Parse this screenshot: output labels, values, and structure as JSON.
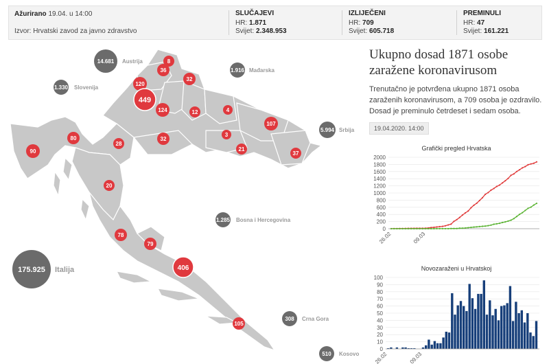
{
  "header": {
    "updated_label": "Ažurirano",
    "updated_value": "19.04. u 14:00",
    "source": "Izvor: Hrvatski zavod za javno zdravstvo",
    "stats": [
      {
        "title": "SLUČAJEVI",
        "hr_label": "HR:",
        "hr_value": "1.871",
        "world_label": "Svijet:",
        "world_value": "2.348.953"
      },
      {
        "title": "IZLIJEČENI",
        "hr_label": "HR:",
        "hr_value": "709",
        "world_label": "Svijet:",
        "world_value": "605.718"
      },
      {
        "title": "PREMINULI",
        "hr_label": "HR:",
        "hr_value": "47",
        "world_label": "Svijet:",
        "world_value": "161.221"
      }
    ]
  },
  "map": {
    "county_bubbles": [
      "8",
      "36",
      "32",
      "120",
      "449",
      "124",
      "12",
      "4",
      "107",
      "32",
      "3",
      "21",
      "37",
      "80",
      "90",
      "28",
      "20",
      "78",
      "79",
      "406",
      "105"
    ],
    "countries": [
      {
        "value": "14.681",
        "name": "Austrija"
      },
      {
        "value": "1.916",
        "name": "Mađarska"
      },
      {
        "value": "1.330",
        "name": "Slovenija"
      },
      {
        "value": "5.994",
        "name": "Srbija"
      },
      {
        "value": "1.285",
        "name": "Bosna i Hercegovina"
      },
      {
        "value": "175.925",
        "name": "Italija"
      },
      {
        "value": "308",
        "name": "Crna Gora"
      },
      {
        "value": "510",
        "name": "Kosovo"
      }
    ]
  },
  "summary": {
    "title": "Ukupno dosad 1871 osobe zaražene koronavirusom",
    "description": "Trenutačno je potvrđena ukupno 1871 osoba zaraženih koronavirusom, a 709 osoba je ozdravilo. Dosad je preminulo četrdeset i sedam osoba.",
    "date": "19.04.2020. 14:00"
  },
  "colors": {
    "bubble_red": "#e0393e",
    "bubble_gray": "#6b6b6b",
    "map_fill": "#c8c8c8",
    "cases_line": "#e03a3a",
    "recovered_line": "#5ab332",
    "bars": "#173f7a"
  },
  "chart_data": [
    {
      "type": "line",
      "title": "Grafički pregled Hrvatska",
      "x_ticks": [
        "26.02",
        "09.03"
      ],
      "ylim": [
        0,
        2000
      ],
      "y_ticks": [
        0,
        200,
        400,
        600,
        800,
        1000,
        1200,
        1400,
        1600,
        1800,
        2000
      ],
      "series": [
        {
          "values": [
            1,
            3,
            3,
            5,
            5,
            7,
            9,
            10,
            11,
            12,
            12,
            12,
            14,
            19,
            32,
            38,
            49,
            57,
            65,
            81,
            105,
            128,
            206,
            254,
            315,
            382,
            442,
            495,
            586,
            657,
            713,
            790,
            867,
            963,
            1011,
            1079,
            1126,
            1182,
            1222,
            1282,
            1343,
            1407,
            1495,
            1534,
            1600,
            1650,
            1704,
            1741,
            1791,
            1814,
            1832,
            1871
          ]
        },
        {
          "values": [
            0,
            0,
            0,
            0,
            0,
            0,
            0,
            0,
            0,
            0,
            0,
            0,
            0,
            0,
            0,
            0,
            1,
            1,
            1,
            1,
            1,
            5,
            5,
            5,
            14,
            16,
            20,
            28,
            36,
            45,
            52,
            60,
            67,
            73,
            85,
            100,
            125,
            137,
            152,
            174,
            191,
            213,
            238,
            282,
            341,
            402,
            449,
            511,
            571,
            603,
            662,
            709
          ]
        }
      ]
    },
    {
      "type": "bar",
      "title": "Novozaraženi u Hrvatskoj",
      "x_ticks": [
        "26.02",
        "09.03"
      ],
      "ylim": [
        0,
        100
      ],
      "y_ticks": [
        0,
        10,
        20,
        30,
        40,
        50,
        60,
        70,
        80,
        90,
        100
      ],
      "values": [
        1,
        2,
        0,
        2,
        0,
        2,
        2,
        1,
        1,
        1,
        0,
        0,
        2,
        5,
        13,
        6,
        11,
        8,
        8,
        16,
        24,
        23,
        78,
        48,
        61,
        67,
        60,
        53,
        91,
        71,
        56,
        77,
        77,
        96,
        48,
        68,
        47,
        56,
        40,
        60,
        61,
        64,
        88,
        39,
        66,
        50,
        54,
        37,
        50,
        23,
        18,
        39
      ]
    }
  ]
}
